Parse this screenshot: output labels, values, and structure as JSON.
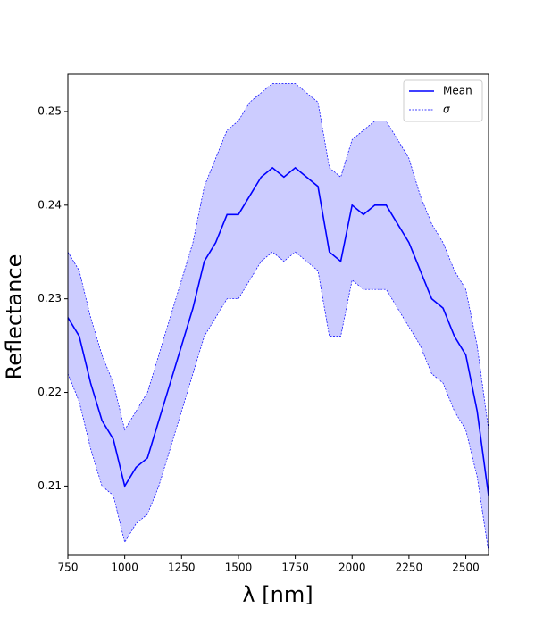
{
  "chart_data": {
    "type": "line",
    "xlabel": "λ [nm]",
    "ylabel": "Reflectance",
    "x": [
      750,
      800,
      850,
      900,
      950,
      1000,
      1050,
      1100,
      1150,
      1200,
      1250,
      1300,
      1350,
      1400,
      1450,
      1500,
      1550,
      1600,
      1650,
      1700,
      1750,
      1800,
      1850,
      1900,
      1950,
      2000,
      2050,
      2100,
      2150,
      2200,
      2250,
      2300,
      2350,
      2400,
      2450,
      2500,
      2550,
      2600
    ],
    "series": [
      {
        "name": "Mean",
        "color": "#0000ff",
        "values": [
          0.228,
          0.226,
          0.221,
          0.217,
          0.215,
          0.21,
          0.212,
          0.213,
          0.217,
          0.221,
          0.225,
          0.229,
          0.234,
          0.236,
          0.239,
          0.239,
          0.241,
          0.243,
          0.244,
          0.243,
          0.244,
          0.243,
          0.242,
          0.235,
          0.234,
          0.24,
          0.239,
          0.24,
          0.24,
          0.238,
          0.236,
          0.233,
          0.23,
          0.229,
          0.226,
          0.224,
          0.218,
          0.209
        ]
      },
      {
        "name": "σ",
        "color": "#0000ff",
        "fill": "#ccccff",
        "upper": [
          0.235,
          0.233,
          0.228,
          0.224,
          0.221,
          0.216,
          0.218,
          0.22,
          0.224,
          0.228,
          0.232,
          0.236,
          0.242,
          0.245,
          0.248,
          0.249,
          0.251,
          0.252,
          0.253,
          0.253,
          0.253,
          0.252,
          0.251,
          0.244,
          0.243,
          0.247,
          0.248,
          0.249,
          0.249,
          0.247,
          0.245,
          0.241,
          0.238,
          0.236,
          0.233,
          0.231,
          0.225,
          0.216
        ],
        "lower": [
          0.222,
          0.219,
          0.214,
          0.21,
          0.209,
          0.204,
          0.206,
          0.207,
          0.21,
          0.214,
          0.218,
          0.222,
          0.226,
          0.228,
          0.23,
          0.23,
          0.232,
          0.234,
          0.235,
          0.234,
          0.235,
          0.234,
          0.233,
          0.226,
          0.226,
          0.232,
          0.231,
          0.231,
          0.231,
          0.229,
          0.227,
          0.225,
          0.222,
          0.221,
          0.218,
          0.216,
          0.211,
          0.203
        ]
      }
    ],
    "xlim": [
      750,
      2600
    ],
    "xticks": [
      750,
      1000,
      1250,
      1500,
      1750,
      2000,
      2250,
      2500
    ],
    "ylim": [
      0.2026,
      0.254
    ],
    "yticks": [
      0.21,
      0.22,
      0.23,
      0.24,
      0.25
    ],
    "grid": false,
    "legend": "upper right"
  }
}
